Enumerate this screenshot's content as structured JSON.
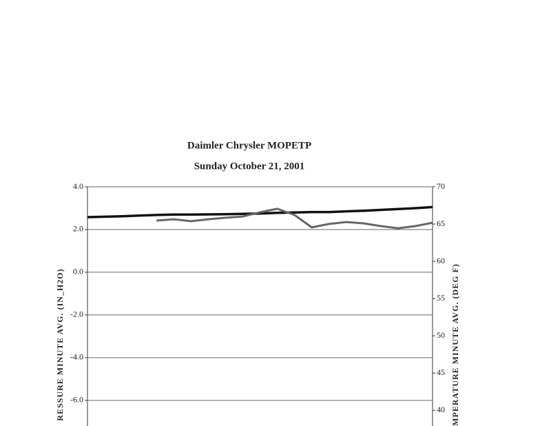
{
  "chart_data": {
    "type": "line",
    "title": "Daimler Chrysler MOPETP",
    "subtitle": "Sunday October 21, 2001",
    "y_label": "RESSURE MINUTE AVG. (IN_H2O)",
    "y2_label": "MPERATURE MINUTE AVG. (DEG F)",
    "ylim": [
      -7.2,
      4.0
    ],
    "yticks": [
      {
        "value": -6,
        "label": "-6.0"
      },
      {
        "value": -4,
        "label": "-4.0"
      },
      {
        "value": -2,
        "label": "-2.0"
      },
      {
        "value": 0,
        "label": "0.0"
      },
      {
        "value": 2,
        "label": "2.0"
      },
      {
        "value": 4,
        "label": "4.0"
      }
    ],
    "y2lim": [
      37.9,
      70
    ],
    "y2ticks": [
      40,
      45,
      50,
      55,
      60,
      65,
      70
    ],
    "grid": true,
    "series": [
      {
        "color": "#111111",
        "width": 3.5,
        "values": [
          2.58,
          2.6,
          2.62,
          2.65,
          2.68,
          2.7,
          2.7,
          2.71,
          2.72,
          2.73,
          2.75,
          2.78,
          2.8,
          2.82,
          2.82,
          2.85,
          2.88,
          2.92,
          2.96,
          3.0,
          3.05
        ]
      },
      {
        "color": "#666666",
        "width": 3,
        "values": [
          null,
          null,
          null,
          null,
          2.42,
          2.48,
          2.39,
          2.48,
          2.55,
          2.61,
          2.81,
          2.97,
          2.68,
          2.1,
          2.26,
          2.35,
          2.29,
          2.16,
          2.06,
          2.16,
          2.32
        ]
      }
    ]
  }
}
